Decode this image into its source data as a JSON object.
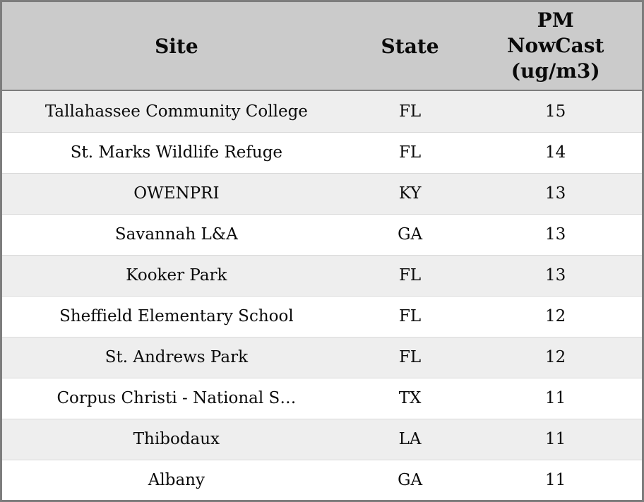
{
  "header": {
    "site": "Site",
    "state": "State",
    "pm": "PM\nNowCast\n(ug/m3)"
  },
  "chart_data": {
    "type": "table",
    "columns": [
      "Site",
      "State",
      "PM NowCast (ug/m3)"
    ],
    "rows": [
      [
        "Tallahassee Community College",
        "FL",
        15
      ],
      [
        "St. Marks Wildlife Refuge",
        "FL",
        14
      ],
      [
        "OWENPRI",
        "KY",
        13
      ],
      [
        "Savannah L&A",
        "GA",
        13
      ],
      [
        "Kooker Park",
        "FL",
        13
      ],
      [
        "Sheffield Elementary School",
        "FL",
        12
      ],
      [
        "St. Andrews Park",
        "FL",
        12
      ],
      [
        "Corpus Christi - National S…",
        "TX",
        11
      ],
      [
        "Thibodaux",
        "LA",
        11
      ],
      [
        "Albany",
        "GA",
        11
      ]
    ]
  },
  "colors": {
    "header_bg": "#cbcbcb",
    "row_alt_bg": "#eeeeee",
    "row_bg": "#ffffff",
    "border": "#7d7d7d",
    "text": "#0a0a0a"
  }
}
